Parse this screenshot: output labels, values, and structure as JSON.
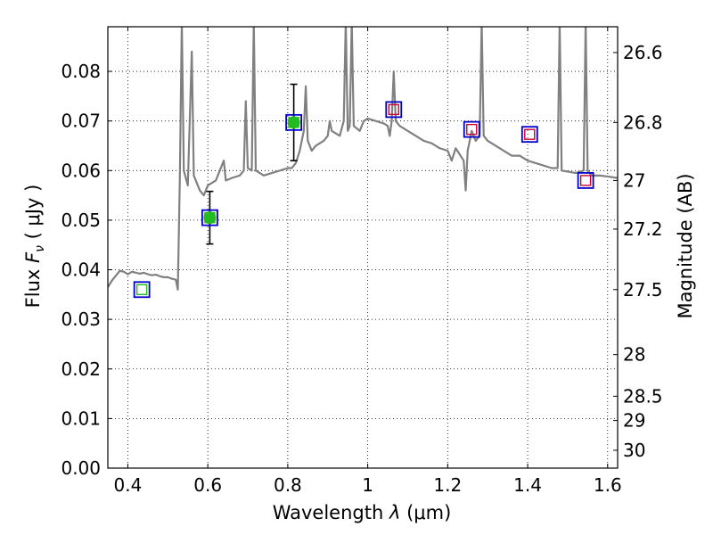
{
  "chart_data": {
    "type": "line",
    "xlabel": "Wavelength  λ (μm)",
    "ylabel_left": "Flux  Fν  ( μJy )",
    "ylabel_right": "Magnitude (AB)",
    "xlim": [
      0.35,
      1.625
    ],
    "ylim": [
      0.0,
      0.089
    ],
    "grid": true,
    "x_ticks": [
      0.4,
      0.6,
      0.8,
      1.0,
      1.2,
      1.4,
      1.6
    ],
    "x_tick_labels": [
      "0.4",
      "0.6",
      "0.8",
      "1",
      "1.2",
      "1.4",
      "1.6"
    ],
    "y_ticks": [
      0.0,
      0.01,
      0.02,
      0.03,
      0.04,
      0.05,
      0.06,
      0.07,
      0.08
    ],
    "y_tick_labels": [
      "0.00",
      "0.01",
      "0.02",
      "0.03",
      "0.04",
      "0.05",
      "0.06",
      "0.07",
      "0.08"
    ],
    "right_ticks": [
      {
        "label": "26.6",
        "flux": 0.0838
      },
      {
        "label": "26.8",
        "flux": 0.0697
      },
      {
        "label": "27",
        "flux": 0.058
      },
      {
        "label": "27.2",
        "flux": 0.0482
      },
      {
        "label": "27.5",
        "flux": 0.036
      },
      {
        "label": "28",
        "flux": 0.0229
      },
      {
        "label": "28.5",
        "flux": 0.0145
      },
      {
        "label": "29",
        "flux": 0.0096
      },
      {
        "label": "30",
        "flux": 0.0036
      }
    ],
    "colors": {
      "spectrum": "#808080",
      "photometry_box": "#0000cc",
      "model_box": "#cc0033",
      "detection": "#22bb22",
      "errorbar": "#000000",
      "grid": "#000000"
    },
    "series": [
      {
        "name": "model spectrum",
        "style": "line",
        "points": [
          [
            0.35,
            0.0365
          ],
          [
            0.36,
            0.0378
          ],
          [
            0.37,
            0.0388
          ],
          [
            0.38,
            0.0398
          ],
          [
            0.39,
            0.0396
          ],
          [
            0.4,
            0.0391
          ],
          [
            0.41,
            0.0396
          ],
          [
            0.42,
            0.0394
          ],
          [
            0.43,
            0.0392
          ],
          [
            0.44,
            0.0394
          ],
          [
            0.45,
            0.0391
          ],
          [
            0.46,
            0.0389
          ],
          [
            0.47,
            0.039
          ],
          [
            0.48,
            0.0387
          ],
          [
            0.49,
            0.0385
          ],
          [
            0.5,
            0.0385
          ],
          [
            0.51,
            0.0382
          ],
          [
            0.52,
            0.038
          ],
          [
            0.525,
            0.036
          ],
          [
            0.53,
            0.058
          ],
          [
            0.535,
            0.09
          ],
          [
            0.54,
            0.06
          ],
          [
            0.55,
            0.057
          ],
          [
            0.56,
            0.084
          ],
          [
            0.565,
            0.059
          ],
          [
            0.58,
            0.056
          ],
          [
            0.59,
            0.055
          ],
          [
            0.6,
            0.057
          ],
          [
            0.62,
            0.058
          ],
          [
            0.63,
            0.06
          ],
          [
            0.64,
            0.062
          ],
          [
            0.645,
            0.058
          ],
          [
            0.66,
            0.0585
          ],
          [
            0.68,
            0.059
          ],
          [
            0.69,
            0.06
          ],
          [
            0.695,
            0.074
          ],
          [
            0.7,
            0.0605
          ],
          [
            0.71,
            0.06
          ],
          [
            0.715,
            0.09
          ],
          [
            0.72,
            0.06
          ],
          [
            0.74,
            0.059
          ],
          [
            0.76,
            0.0595
          ],
          [
            0.78,
            0.06
          ],
          [
            0.8,
            0.0605
          ],
          [
            0.81,
            0.0605
          ],
          [
            0.82,
            0.0615
          ],
          [
            0.83,
            0.064
          ],
          [
            0.84,
            0.068
          ],
          [
            0.845,
            0.077
          ],
          [
            0.85,
            0.066
          ],
          [
            0.86,
            0.064
          ],
          [
            0.87,
            0.065
          ],
          [
            0.88,
            0.0655
          ],
          [
            0.89,
            0.066
          ],
          [
            0.9,
            0.067
          ],
          [
            0.905,
            0.07
          ],
          [
            0.91,
            0.068
          ],
          [
            0.92,
            0.0675
          ],
          [
            0.93,
            0.067
          ],
          [
            0.94,
            0.07
          ],
          [
            0.945,
            0.09
          ],
          [
            0.95,
            0.068
          ],
          [
            0.955,
            0.069
          ],
          [
            0.96,
            0.09
          ],
          [
            0.965,
            0.069
          ],
          [
            0.98,
            0.068
          ],
          [
            0.99,
            0.07
          ],
          [
            1.0,
            0.0705
          ],
          [
            1.02,
            0.07
          ],
          [
            1.04,
            0.0695
          ],
          [
            1.05,
            0.069
          ],
          [
            1.055,
            0.067
          ],
          [
            1.06,
            0.07
          ],
          [
            1.065,
            0.08
          ],
          [
            1.07,
            0.07
          ],
          [
            1.08,
            0.069
          ],
          [
            1.1,
            0.068
          ],
          [
            1.12,
            0.067
          ],
          [
            1.14,
            0.066
          ],
          [
            1.16,
            0.0655
          ],
          [
            1.18,
            0.0645
          ],
          [
            1.2,
            0.064
          ],
          [
            1.21,
            0.062
          ],
          [
            1.22,
            0.0645
          ],
          [
            1.24,
            0.062
          ],
          [
            1.245,
            0.056
          ],
          [
            1.25,
            0.064
          ],
          [
            1.255,
            0.066
          ],
          [
            1.26,
            0.068
          ],
          [
            1.265,
            0.067
          ],
          [
            1.27,
            0.066
          ],
          [
            1.28,
            0.067
          ],
          [
            1.285,
            0.09
          ],
          [
            1.29,
            0.067
          ],
          [
            1.3,
            0.066
          ],
          [
            1.32,
            0.065
          ],
          [
            1.34,
            0.064
          ],
          [
            1.36,
            0.063
          ],
          [
            1.38,
            0.063
          ],
          [
            1.4,
            0.062
          ],
          [
            1.42,
            0.0615
          ],
          [
            1.44,
            0.061
          ],
          [
            1.46,
            0.0605
          ],
          [
            1.475,
            0.0605
          ],
          [
            1.48,
            0.09
          ],
          [
            1.485,
            0.06
          ],
          [
            1.5,
            0.0598
          ],
          [
            1.52,
            0.0595
          ],
          [
            1.54,
            0.06
          ],
          [
            1.545,
            0.09
          ],
          [
            1.55,
            0.06
          ],
          [
            1.56,
            0.059
          ],
          [
            1.58,
            0.059
          ],
          [
            1.6,
            0.0588
          ],
          [
            1.625,
            0.0585
          ]
        ]
      },
      {
        "name": "photometric detections",
        "style": "scatter-errorbar",
        "points": [
          {
            "x": 0.605,
            "y": 0.0505,
            "err": 0.0053
          },
          {
            "x": 0.815,
            "y": 0.0697,
            "err": 0.0077
          }
        ]
      },
      {
        "name": "photometry boxes",
        "style": "square-marker",
        "points": [
          {
            "x": 0.435,
            "y": 0.036,
            "fill": "#22bb22"
          },
          {
            "x": 0.605,
            "y": 0.0505,
            "fill": "#22bb22"
          },
          {
            "x": 0.815,
            "y": 0.0697,
            "fill": "#22bb22"
          },
          {
            "x": 1.065,
            "y": 0.0723,
            "fill": "#cc0033"
          },
          {
            "x": 1.26,
            "y": 0.0683,
            "fill": "#cc0033"
          },
          {
            "x": 1.405,
            "y": 0.0673,
            "fill": "#cc0033"
          },
          {
            "x": 1.545,
            "y": 0.058,
            "fill": "#cc0033"
          }
        ]
      }
    ]
  }
}
